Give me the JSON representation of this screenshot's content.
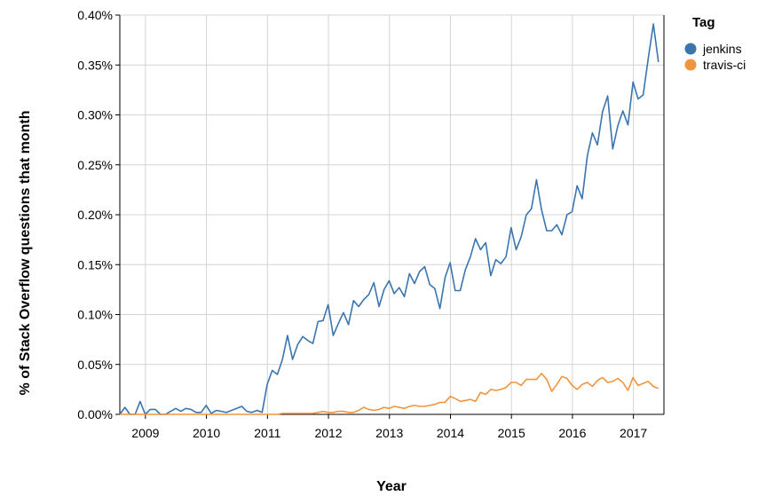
{
  "chart_data": {
    "type": "line",
    "xlabel": "Year",
    "ylabel": "% of Stack Overflow questions that month",
    "x_ticks": [
      "2009",
      "2010",
      "2011",
      "2012",
      "2013",
      "2014",
      "2015",
      "2016",
      "2017"
    ],
    "y_ticks": [
      "0.00%",
      "0.05%",
      "0.10%",
      "0.15%",
      "0.20%",
      "0.25%",
      "0.30%",
      "0.35%",
      "0.40%"
    ],
    "xlim": [
      2008.58,
      2017.5
    ],
    "ylim": [
      0,
      0.4
    ],
    "grid": true,
    "legend": {
      "title": "Tag",
      "position": "top-right"
    },
    "series": [
      {
        "name": "jenkins",
        "color": "#3a75b0",
        "start": 2008.58,
        "step": 0.0833,
        "values": [
          0.0,
          0.007,
          0.0,
          0.0,
          0.013,
          0.0,
          0.005,
          0.005,
          0.0,
          0.0,
          0.003,
          0.006,
          0.003,
          0.006,
          0.005,
          0.002,
          0.002,
          0.009,
          0.001,
          0.004,
          0.003,
          0.002,
          0.004,
          0.006,
          0.008,
          0.003,
          0.002,
          0.004,
          0.002,
          0.03,
          0.044,
          0.04,
          0.055,
          0.079,
          0.055,
          0.07,
          0.078,
          0.074,
          0.071,
          0.093,
          0.094,
          0.11,
          0.079,
          0.091,
          0.102,
          0.09,
          0.114,
          0.108,
          0.115,
          0.12,
          0.132,
          0.108,
          0.125,
          0.134,
          0.121,
          0.127,
          0.118,
          0.141,
          0.131,
          0.143,
          0.148,
          0.13,
          0.126,
          0.106,
          0.137,
          0.152,
          0.124,
          0.124,
          0.145,
          0.158,
          0.176,
          0.165,
          0.172,
          0.139,
          0.155,
          0.151,
          0.158,
          0.187,
          0.165,
          0.178,
          0.2,
          0.206,
          0.235,
          0.205,
          0.184,
          0.184,
          0.19,
          0.18,
          0.2,
          0.203,
          0.229,
          0.216,
          0.259,
          0.282,
          0.27,
          0.303,
          0.319,
          0.266,
          0.289,
          0.304,
          0.29,
          0.333,
          0.316,
          0.32,
          0.357,
          0.391,
          0.353
        ]
      },
      {
        "name": "travis-ci",
        "color": "#f0953b",
        "start": 2008.58,
        "step": 0.0833,
        "values": [
          0.0,
          0.0,
          0.0,
          0.0,
          0.0,
          0.0,
          0.0,
          0.0,
          0.0,
          0.0,
          0.0,
          0.0,
          0.0,
          0.0,
          0.0,
          0.0,
          0.0,
          0.0,
          0.0,
          0.0,
          0.0,
          0.0,
          0.0,
          0.0,
          0.0,
          0.0,
          0.0,
          0.0,
          0.0,
          0.0,
          0.0,
          0.0,
          0.001,
          0.001,
          0.001,
          0.001,
          0.001,
          0.001,
          0.001,
          0.002,
          0.003,
          0.002,
          0.002,
          0.003,
          0.003,
          0.002,
          0.002,
          0.004,
          0.007,
          0.005,
          0.004,
          0.005,
          0.007,
          0.006,
          0.008,
          0.007,
          0.006,
          0.008,
          0.009,
          0.008,
          0.008,
          0.009,
          0.01,
          0.012,
          0.012,
          0.018,
          0.016,
          0.013,
          0.014,
          0.015,
          0.013,
          0.022,
          0.02,
          0.025,
          0.024,
          0.025,
          0.027,
          0.032,
          0.032,
          0.029,
          0.035,
          0.035,
          0.035,
          0.041,
          0.035,
          0.023,
          0.03,
          0.038,
          0.036,
          0.029,
          0.025,
          0.03,
          0.032,
          0.028,
          0.034,
          0.037,
          0.032,
          0.033,
          0.036,
          0.032,
          0.024,
          0.037,
          0.029,
          0.031,
          0.033,
          0.028,
          0.026
        ]
      }
    ]
  }
}
